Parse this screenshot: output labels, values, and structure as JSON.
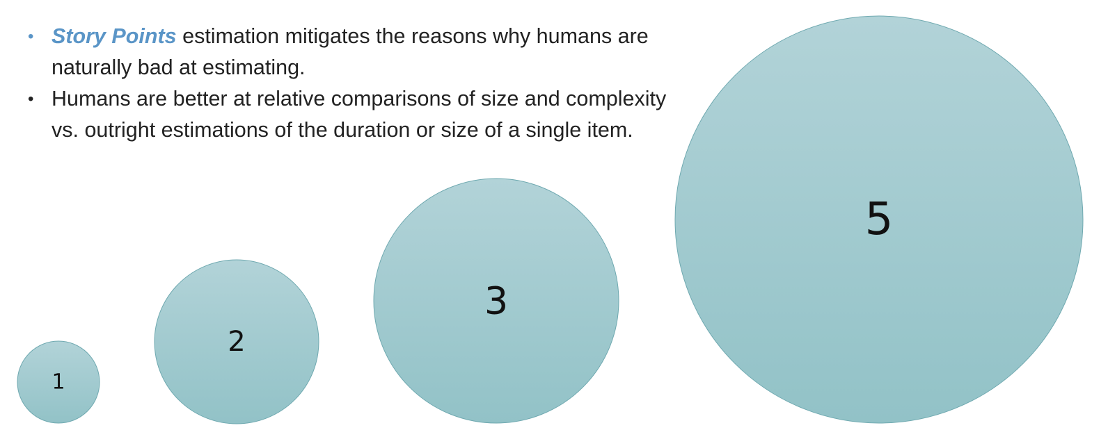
{
  "bullets": [
    {
      "emphasis": "Story Points",
      "text": " estimation mitigates the reasons why humans are naturally bad at estimating."
    },
    {
      "emphasis": "",
      "text": "Humans are better at relative comparisons of size and complexity vs. outright estimations of the duration or size of a single item."
    }
  ],
  "circles": [
    {
      "label": "1"
    },
    {
      "label": "2"
    },
    {
      "label": "3"
    },
    {
      "label": "5"
    }
  ],
  "colors": {
    "accent": "#5a95c7",
    "circle_fill_top": "#b2d3d8",
    "circle_fill_bottom": "#92c2c7",
    "circle_stroke": "#6fa9b0",
    "text": "#222222"
  }
}
